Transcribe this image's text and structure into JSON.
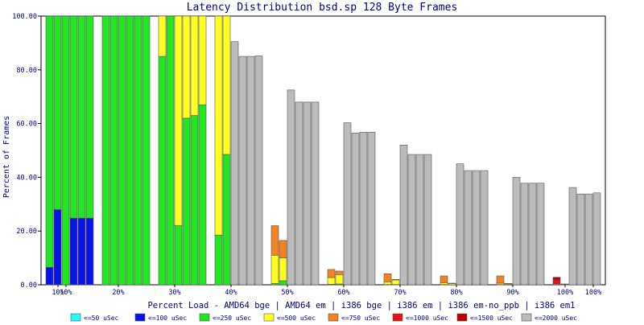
{
  "chart_data": {
    "type": "bar",
    "stacked": true,
    "title": "Latency Distribution bsd.sp 128 Byte Frames",
    "xlabel": "Percent Load - AMD64 bge | AMD64 em | i386 bge | i386 em | i386 em-no_ppb | i386 em1",
    "ylabel": "Percent of Frames",
    "ylim": [
      0,
      100
    ],
    "y_ticks": [
      "0.00",
      "20.00",
      "40.00",
      "60.00",
      "80.00",
      "100.00"
    ],
    "grid": false,
    "legend_position": "bottom",
    "x_tick_labels": [
      {
        "label": "10%",
        "pos": 1.5
      },
      {
        "label": "10%",
        "pos": 2.5
      },
      {
        "label": "20%",
        "pos": 9
      },
      {
        "label": "30%",
        "pos": 16
      },
      {
        "label": "40%",
        "pos": 23
      },
      {
        "label": "50%",
        "pos": 30
      },
      {
        "label": "60%",
        "pos": 37
      },
      {
        "label": "70%",
        "pos": 44
      },
      {
        "label": "80%",
        "pos": 51
      },
      {
        "label": "90%",
        "pos": 58
      },
      {
        "label": "100%",
        "pos": 64.5
      },
      {
        "label": "100%",
        "pos": 68
      }
    ],
    "series": [
      {
        "name": "<=50 uSec",
        "color": "#22ffff"
      },
      {
        "name": "<=100 uSec",
        "color": "#0a14e6"
      },
      {
        "name": "<=250 uSec",
        "color": "#22e622"
      },
      {
        "name": "<=500 uSec",
        "color": "#ffff22"
      },
      {
        "name": "<=750 uSec",
        "color": "#f58220"
      },
      {
        "name": "<=1000 uSec",
        "color": "#ee1111"
      },
      {
        "name": "<=1500 uSec",
        "color": "#bb0000"
      },
      {
        "name": "<=2000 uSec",
        "color": "#bbbbbb"
      }
    ],
    "bars": [
      [
        0,
        6.5,
        93.5,
        0,
        0,
        0,
        0,
        0
      ],
      [
        0,
        28,
        72,
        0,
        0,
        0,
        0,
        0
      ],
      [
        0,
        0,
        100,
        0,
        0,
        0,
        0,
        0
      ],
      [
        0,
        24.8,
        75.2,
        0,
        0,
        0,
        0,
        0
      ],
      [
        0,
        24.8,
        75.2,
        0,
        0,
        0,
        0,
        0
      ],
      [
        0,
        24.8,
        75.2,
        0,
        0,
        0,
        0,
        0
      ],
      null,
      [
        0,
        0,
        100,
        0,
        0,
        0,
        0,
        0
      ],
      [
        0,
        0,
        100,
        0,
        0,
        0,
        0,
        0
      ],
      [
        0,
        0,
        100,
        0,
        0,
        0,
        0,
        0
      ],
      [
        0,
        0,
        100,
        0,
        0,
        0,
        0,
        0
      ],
      [
        0,
        0,
        100,
        0,
        0,
        0,
        0,
        0
      ],
      [
        0,
        0,
        100,
        0,
        0,
        0,
        0,
        0
      ],
      null,
      [
        0,
        0,
        85,
        15,
        0,
        0,
        0,
        0
      ],
      [
        0,
        0,
        100,
        0,
        0,
        0,
        0,
        0
      ],
      [
        0,
        0,
        22,
        78,
        0,
        0,
        0,
        0
      ],
      [
        0,
        0,
        62,
        38,
        0,
        0,
        0,
        0
      ],
      [
        0,
        0,
        63,
        37,
        0,
        0,
        0,
        0
      ],
      [
        0,
        0,
        67,
        33,
        0,
        0,
        0,
        0
      ],
      null,
      [
        0,
        0,
        18.5,
        81.5,
        0,
        0,
        0,
        0
      ],
      [
        0,
        0,
        48.5,
        51.5,
        0,
        0,
        0,
        0
      ],
      [
        0,
        0,
        0,
        0,
        0,
        0,
        0,
        90.5
      ],
      [
        0,
        0,
        0,
        0,
        0,
        0,
        0,
        85
      ],
      [
        0,
        0,
        0,
        0,
        0,
        0,
        0,
        85
      ],
      [
        0,
        0,
        0,
        0,
        0,
        0,
        0,
        85.2
      ],
      null,
      [
        0,
        0,
        0.5,
        10.5,
        11,
        0,
        0,
        0
      ],
      [
        0,
        0,
        1.5,
        8.5,
        6.5,
        0,
        0,
        0
      ],
      [
        0,
        0,
        0,
        0,
        0,
        0,
        0,
        72.5
      ],
      [
        0,
        0,
        0,
        0,
        0,
        0,
        0,
        68
      ],
      [
        0,
        0,
        0,
        0,
        0,
        0,
        0,
        68
      ],
      [
        0,
        0,
        0,
        0,
        0,
        0,
        0,
        68
      ],
      null,
      [
        0,
        0,
        0.2,
        2.5,
        3,
        0,
        0,
        0
      ],
      [
        0,
        0,
        0.3,
        3.5,
        1.3,
        0,
        0,
        0
      ],
      [
        0,
        0,
        0,
        0,
        0,
        0,
        0,
        60.3
      ],
      [
        0,
        0,
        0,
        0,
        0,
        0,
        0,
        56.5
      ],
      [
        0,
        0,
        0,
        0,
        0,
        0,
        0,
        56.8
      ],
      [
        0,
        0,
        0,
        0,
        0,
        0,
        0,
        56.8
      ],
      null,
      [
        0,
        0,
        0.1,
        1,
        3,
        0,
        0,
        0
      ],
      [
        0,
        0,
        0.1,
        1.7,
        0.2,
        0,
        0,
        0
      ],
      [
        0,
        0,
        0,
        0,
        0,
        0,
        0,
        52
      ],
      [
        0,
        0,
        0,
        0,
        0,
        0,
        0,
        48.5
      ],
      [
        0,
        0,
        0,
        0,
        0,
        0,
        0,
        48.5
      ],
      [
        0,
        0,
        0,
        0,
        0,
        0,
        0,
        48.5
      ],
      null,
      [
        0,
        0,
        0.1,
        0.7,
        2.5,
        0,
        0,
        0
      ],
      [
        0,
        0,
        0,
        0.5,
        0.1,
        0,
        0,
        0
      ],
      [
        0,
        0,
        0,
        0,
        0,
        0,
        0,
        45
      ],
      [
        0,
        0,
        0,
        0,
        0,
        0,
        0,
        42.5
      ],
      [
        0,
        0,
        0,
        0,
        0,
        0,
        0,
        42.5
      ],
      [
        0,
        0,
        0,
        0,
        0,
        0,
        0,
        42.5
      ],
      null,
      [
        0,
        0,
        0.1,
        0.5,
        2.7,
        0,
        0,
        0
      ],
      [
        0,
        0,
        0,
        0.3,
        0.2,
        0,
        0,
        0
      ],
      [
        0,
        0,
        0,
        0,
        0,
        0,
        0,
        40
      ],
      [
        0,
        0,
        0,
        0,
        0,
        0,
        0,
        37.8
      ],
      [
        0,
        0,
        0,
        0,
        0,
        0,
        0,
        37.8
      ],
      [
        0,
        0,
        0,
        0,
        0,
        0,
        0,
        37.8
      ],
      null,
      [
        0,
        0,
        0,
        0,
        0.3,
        1.5,
        1,
        0
      ],
      [
        0,
        0,
        0,
        0,
        0,
        0.1,
        0.2,
        0
      ],
      [
        0,
        0,
        0,
        0,
        0,
        0,
        0,
        36.2
      ],
      [
        0,
        0,
        0,
        0,
        0,
        0,
        0,
        33.8
      ],
      [
        0,
        0,
        0,
        0,
        0,
        0,
        0,
        33.8
      ],
      [
        0,
        0,
        0,
        0,
        0,
        0,
        0,
        34.2
      ]
    ]
  }
}
